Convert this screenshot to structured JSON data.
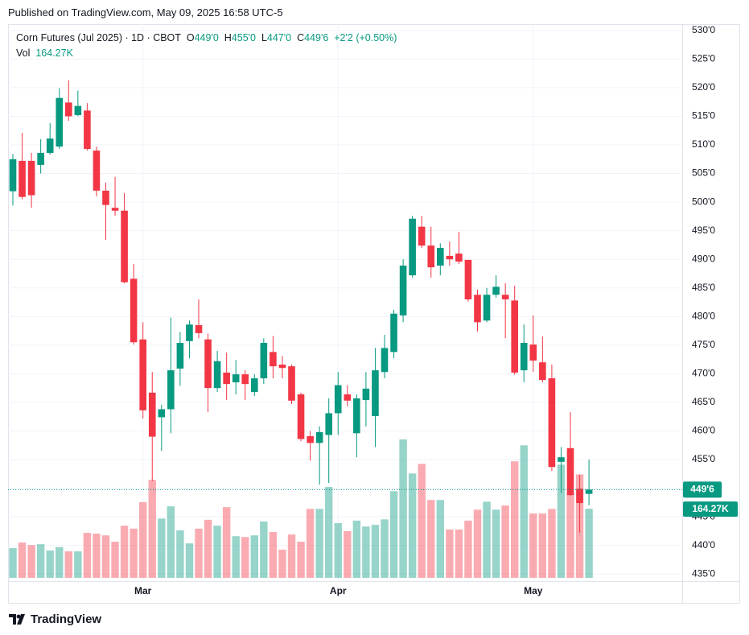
{
  "publisher": "Published on TradingView.com, May 09, 2025 16:58 UTC-5",
  "footer": "TradingView",
  "chart_data": {
    "type": "candlestick",
    "title": "Corn Futures (Jul 2025) · 1D · CBOT",
    "ohlc_labels": [
      "O",
      "H",
      "L",
      "C"
    ],
    "ohlc_values": [
      "449'0",
      "455'0",
      "447'0",
      "449'6"
    ],
    "change": "+2'2 (+0.50%)",
    "volume_label": "Vol",
    "last_volume": {
      "value": 164270,
      "label": "164.27K"
    },
    "last_price": {
      "value": 449.75,
      "label": "449'6"
    },
    "up_color": "#089981",
    "down_color": "#f23645",
    "grid": true,
    "categories": [
      null,
      null,
      null,
      null,
      null,
      null,
      null,
      null,
      null,
      null,
      null,
      null,
      null,
      null,
      "Mar",
      null,
      null,
      null,
      null,
      null,
      null,
      null,
      null,
      null,
      null,
      null,
      null,
      null,
      null,
      null,
      null,
      null,
      null,
      null,
      null,
      "Apr",
      null,
      null,
      null,
      null,
      null,
      null,
      null,
      null,
      null,
      null,
      null,
      null,
      null,
      null,
      null,
      null,
      null,
      null,
      null,
      null,
      "May",
      null,
      null,
      null,
      null,
      null,
      null
    ],
    "open": [
      501.9,
      507.2,
      507.2,
      506.5,
      508.6,
      509.7,
      517.4,
      515.2,
      516,
      509,
      502,
      499,
      498.5,
      486.6,
      476,
      466.7,
      462.4,
      463.8,
      470.9,
      475.7,
      478.5,
      476,
      467.5,
      470.2,
      468.5,
      469.9,
      466.8,
      469.2,
      473.8,
      471.6,
      471.3,
      466.4,
      459.1,
      457.9,
      459.3,
      463.1,
      466.4,
      459.6,
      465.4,
      462.6,
      470.3,
      473.8,
      480.2,
      487.2,
      495.7,
      492.4,
      488.9,
      490.6,
      491,
      489.9,
      483.8,
      479.3,
      483.8,
      483.8,
      482.8,
      470.6,
      475.1,
      472,
      469.2,
      454.6,
      457,
      449.9,
      449
    ],
    "high": [
      508.4,
      512.1,
      508.6,
      511,
      513.8,
      519.9,
      521.3,
      519.5,
      517.3,
      509.7,
      503.4,
      504.4,
      501.6,
      489.2,
      479,
      470.3,
      464.6,
      479.8,
      477.3,
      479.3,
      483,
      477,
      474,
      473.7,
      472.4,
      470.6,
      469.9,
      476.2,
      476.6,
      473.1,
      471.6,
      466.7,
      460,
      460.8,
      465.7,
      470.3,
      468,
      466.4,
      470.3,
      474.5,
      476.8,
      481.2,
      490,
      497.6,
      497.6,
      495.7,
      492.8,
      493.1,
      494.8,
      489.9,
      484.7,
      485,
      487.2,
      485.8,
      485.4,
      478.6,
      480.2,
      476.5,
      471.6,
      457.2,
      463.3,
      452.3,
      455
    ],
    "low": [
      499.4,
      500.5,
      499,
      505,
      508.3,
      509.3,
      514.2,
      515,
      509,
      501,
      493.4,
      497.6,
      485.8,
      475.1,
      462.2,
      451.2,
      456.5,
      459.6,
      467.9,
      472.7,
      476.2,
      463.3,
      466.8,
      465.4,
      466.4,
      465.4,
      466.1,
      468.2,
      469.2,
      469.2,
      464.7,
      458.2,
      454.8,
      450.6,
      450.9,
      459.3,
      464.3,
      455.4,
      460.8,
      457.2,
      469.2,
      472.7,
      479,
      486.8,
      492,
      486.8,
      487.2,
      488.9,
      489.2,
      482.6,
      477.4,
      479,
      483.3,
      476.2,
      469.8,
      468.5,
      470.3,
      468.5,
      453,
      449.2,
      448.6,
      442.2,
      447
    ],
    "close": [
      507.5,
      500.9,
      501.2,
      508.6,
      511.1,
      518.2,
      515,
      516.8,
      509.3,
      502,
      499.5,
      498.5,
      486,
      475.5,
      463.6,
      459,
      463.8,
      470.6,
      475.4,
      478.6,
      477.1,
      467.5,
      472.2,
      468.2,
      469.9,
      468.2,
      469.2,
      475.4,
      471.3,
      471,
      465.3,
      458.6,
      457.9,
      459.8,
      463.1,
      468,
      465.3,
      465.7,
      467.4,
      470.6,
      474.5,
      480.5,
      488.9,
      497.1,
      492.4,
      488.6,
      492,
      490,
      489.6,
      483,
      479,
      483.8,
      485.2,
      483,
      470.2,
      475.4,
      472.3,
      468.9,
      453.7,
      455.4,
      448.8,
      447.4,
      449.75
    ],
    "volume": [
      70700,
      84000,
      78000,
      80000,
      65000,
      73000,
      63000,
      63000,
      107000,
      105000,
      101000,
      86000,
      124000,
      117000,
      180000,
      233000,
      141000,
      170000,
      113000,
      82000,
      117000,
      138000,
      124000,
      168000,
      99000,
      97000,
      101000,
      134000,
      109000,
      67000,
      103000,
      86000,
      164000,
      164000,
      216000,
      130000,
      111000,
      136000,
      122000,
      126000,
      139000,
      206000,
      329000,
      248000,
      271000,
      185000,
      185000,
      115000,
      115000,
      136000,
      162000,
      181000,
      162000,
      172000,
      277000,
      315000,
      153000,
      153000,
      164000,
      269000,
      202000,
      246000,
      164270
    ],
    "ylim": [
      433.2,
      531.1
    ],
    "yticks": [
      {
        "value": 435,
        "label": "435'0"
      },
      {
        "value": 440,
        "label": "440'0"
      },
      {
        "value": 445,
        "label": "445'0"
      },
      {
        "value": 450,
        "label": "450'0"
      },
      {
        "value": 455,
        "label": "455'0"
      },
      {
        "value": 460,
        "label": "460'0"
      },
      {
        "value": 465,
        "label": "465'0"
      },
      {
        "value": 470,
        "label": "470'0"
      },
      {
        "value": 475,
        "label": "475'0"
      },
      {
        "value": 480,
        "label": "480'0"
      },
      {
        "value": 485,
        "label": "485'0"
      },
      {
        "value": 490,
        "label": "490'0"
      },
      {
        "value": 495,
        "label": "495'0"
      },
      {
        "value": 500,
        "label": "500'0"
      },
      {
        "value": 505,
        "label": "505'0"
      },
      {
        "value": 510,
        "label": "510'0"
      },
      {
        "value": 515,
        "label": "515'0"
      },
      {
        "value": 520,
        "label": "520'0"
      },
      {
        "value": 525,
        "label": "525'0"
      },
      {
        "value": 530,
        "label": "530'0"
      }
    ]
  }
}
